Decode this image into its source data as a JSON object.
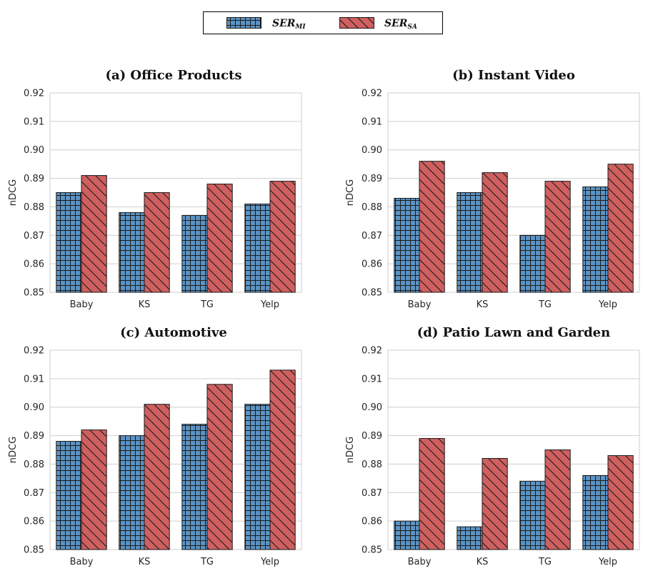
{
  "legend": {
    "series_a": {
      "base": "SER",
      "sub": "MI"
    },
    "series_b": {
      "base": "SER",
      "sub": "SA"
    }
  },
  "colors": {
    "mi": "#5b93c4",
    "sa": "#d06060",
    "grid": "#cfcfcf",
    "edge": "#1a1a1a"
  },
  "chart_data": [
    {
      "type": "bar",
      "title": "(a) Office Products",
      "ylabel": "nDCG",
      "categories": [
        "Baby",
        "KS",
        "TG",
        "Yelp"
      ],
      "ylim": [
        0.85,
        0.92
      ],
      "yticks": [
        "0.85",
        "0.86",
        "0.87",
        "0.88",
        "0.89",
        "0.90",
        "0.91",
        "0.92"
      ],
      "series": [
        {
          "name": "SER_MI",
          "values": [
            0.885,
            0.878,
            0.877,
            0.881
          ]
        },
        {
          "name": "SER_SA",
          "values": [
            0.891,
            0.885,
            0.888,
            0.889
          ]
        }
      ]
    },
    {
      "type": "bar",
      "title": "(b) Instant Video",
      "ylabel": "nDCG",
      "categories": [
        "Baby",
        "KS",
        "TG",
        "Yelp"
      ],
      "ylim": [
        0.85,
        0.92
      ],
      "yticks": [
        "0.85",
        "0.86",
        "0.87",
        "0.88",
        "0.89",
        "0.90",
        "0.91",
        "0.92"
      ],
      "series": [
        {
          "name": "SER_MI",
          "values": [
            0.883,
            0.885,
            0.87,
            0.887
          ]
        },
        {
          "name": "SER_SA",
          "values": [
            0.896,
            0.892,
            0.889,
            0.895
          ]
        }
      ]
    },
    {
      "type": "bar",
      "title": "(c) Automotive",
      "ylabel": "nDCG",
      "categories": [
        "Baby",
        "KS",
        "TG",
        "Yelp"
      ],
      "ylim": [
        0.85,
        0.92
      ],
      "yticks": [
        "0.85",
        "0.86",
        "0.87",
        "0.88",
        "0.89",
        "0.90",
        "0.91",
        "0.92"
      ],
      "series": [
        {
          "name": "SER_MI",
          "values": [
            0.888,
            0.89,
            0.894,
            0.901
          ]
        },
        {
          "name": "SER_SA",
          "values": [
            0.892,
            0.901,
            0.908,
            0.913
          ]
        }
      ]
    },
    {
      "type": "bar",
      "title": "(d) Patio Lawn and Garden",
      "ylabel": "nDCG",
      "categories": [
        "Baby",
        "KS",
        "TG",
        "Yelp"
      ],
      "ylim": [
        0.85,
        0.92
      ],
      "yticks": [
        "0.85",
        "0.86",
        "0.87",
        "0.88",
        "0.89",
        "0.90",
        "0.91",
        "0.92"
      ],
      "series": [
        {
          "name": "SER_MI",
          "values": [
            0.86,
            0.858,
            0.874,
            0.876
          ]
        },
        {
          "name": "SER_SA",
          "values": [
            0.889,
            0.882,
            0.885,
            0.883
          ]
        }
      ]
    }
  ]
}
